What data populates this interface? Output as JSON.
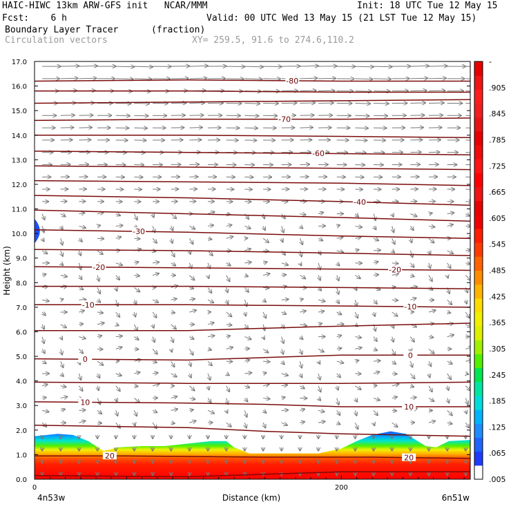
{
  "header": {
    "line1_left": "HAIC-HIWC 13km ARW-GFS init   NCAR/MMM",
    "line1_right": "Init: 18 UTC Tue 12 May 15",
    "line2_left": "Fcst:    6 h",
    "line2_right": "Valid: 00 UTC Wed 13 May 15 (21 LST Tue 12 May 15)",
    "line3_left": "Boundary Layer Tracer",
    "line3_mid": "(fraction)",
    "line4_left": "Circulation vectors",
    "line4_mid": "XY= 259.5, 91.6 to 274.6,110.2"
  },
  "chart_data": {
    "type": "heatmap",
    "title": "Boundary Layer Tracer",
    "units": "(fraction)",
    "xlabel": "Distance (km)",
    "ylabel": "Height (km)",
    "x_range": [
      0,
      284
    ],
    "y_range": [
      0,
      17
    ],
    "x_ticks": [
      {
        "v": 0,
        "label": "0"
      },
      {
        "v": 200,
        "label": "200"
      }
    ],
    "x_end_labels": {
      "left": "4n53w",
      "right": "6n51w"
    },
    "y_ticks": [
      0,
      1,
      2,
      3,
      4,
      5,
      6,
      7,
      8,
      9,
      10,
      11,
      12,
      13,
      14,
      15,
      16,
      17
    ],
    "y_tick_labels": [
      "0.0",
      "1.0",
      "2.0",
      "3.0",
      "4.0",
      "5.0",
      "6.0",
      "7.0",
      "8.0",
      "9.0",
      "10.0",
      "11.0",
      "12.0",
      "13.0",
      "14.0",
      "15.0",
      "16.0",
      "17.0"
    ],
    "colorbar": {
      "labels": [
        ".005",
        ".065",
        ".125",
        ".185",
        ".245",
        ".305",
        ".365",
        ".425",
        ".485",
        ".545",
        ".605",
        ".665",
        ".725",
        ".785",
        ".845",
        ".905",
        "-"
      ],
      "colors": [
        "#ffffff",
        "#1e3cff",
        "#1e64ff",
        "#1e8cff",
        "#00b4ff",
        "#00dcdc",
        "#00e6a0",
        "#00e650",
        "#50f000",
        "#a0f000",
        "#dcf000",
        "#f0f000",
        "#ffdc00",
        "#ffb400",
        "#ff8c00",
        "#ff6400",
        "#ff3c00",
        "#ff1e00",
        "#f00000",
        "#e60000",
        "#f01414",
        "#ff0000",
        "#ff1414",
        "#f00a0a",
        "#e60000",
        "#e61414",
        "#f01e1e",
        "#ff1e1e",
        "#f01414",
        "#e60000"
      ]
    },
    "tracer_top_km": [
      [
        0,
        1.75
      ],
      [
        15,
        1.85
      ],
      [
        25,
        1.8
      ],
      [
        35,
        1.55
      ],
      [
        45,
        1.15
      ],
      [
        55,
        1.3
      ],
      [
        70,
        1.35
      ],
      [
        85,
        1.35
      ],
      [
        100,
        1.45
      ],
      [
        115,
        1.55
      ],
      [
        125,
        1.55
      ],
      [
        130,
        1.3
      ],
      [
        140,
        1.05
      ],
      [
        160,
        1.05
      ],
      [
        185,
        1.05
      ],
      [
        200,
        1.25
      ],
      [
        210,
        1.55
      ],
      [
        220,
        1.8
      ],
      [
        232,
        1.95
      ],
      [
        242,
        1.85
      ],
      [
        255,
        1.35
      ],
      [
        262,
        1.3
      ],
      [
        270,
        1.55
      ],
      [
        284,
        1.6
      ]
    ],
    "tracer_left_blob": {
      "x_km": [
        0,
        7
      ],
      "y_km": [
        9.6,
        10.6
      ]
    },
    "temperature_contours": [
      {
        "label": "-80",
        "label_x": 168,
        "pts": [
          [
            0,
            16.2
          ],
          [
            100,
            16.25
          ],
          [
            200,
            16.2
          ],
          [
            284,
            16.2
          ]
        ]
      },
      {
        "label": "",
        "label_x": null,
        "pts": [
          [
            0,
            15.8
          ],
          [
            100,
            15.8
          ],
          [
            200,
            15.75
          ],
          [
            284,
            15.75
          ]
        ]
      },
      {
        "label": "",
        "label_x": null,
        "pts": [
          [
            0,
            15.3
          ],
          [
            100,
            15.35
          ],
          [
            200,
            15.4
          ],
          [
            284,
            15.45
          ]
        ]
      },
      {
        "label": "-70",
        "label_x": 163,
        "pts": [
          [
            0,
            14.6
          ],
          [
            100,
            14.65
          ],
          [
            200,
            14.65
          ],
          [
            284,
            14.7
          ]
        ]
      },
      {
        "label": "",
        "label_x": null,
        "pts": [
          [
            0,
            14.0
          ],
          [
            100,
            14.0
          ],
          [
            200,
            13.95
          ],
          [
            284,
            13.9
          ]
        ]
      },
      {
        "label": "-60",
        "label_x": 185,
        "pts": [
          [
            0,
            13.35
          ],
          [
            100,
            13.3
          ],
          [
            200,
            13.25
          ],
          [
            284,
            13.2
          ]
        ]
      },
      {
        "label": "",
        "label_x": null,
        "pts": [
          [
            0,
            12.75
          ],
          [
            100,
            12.7
          ],
          [
            200,
            12.65
          ],
          [
            284,
            12.6
          ]
        ]
      },
      {
        "label": "",
        "label_x": null,
        "pts": [
          [
            0,
            12.15
          ],
          [
            100,
            12.1
          ],
          [
            200,
            12.05
          ],
          [
            284,
            11.95
          ]
        ]
      },
      {
        "label": "-40",
        "label_x": 212,
        "pts": [
          [
            0,
            11.55
          ],
          [
            100,
            11.45
          ],
          [
            200,
            11.3
          ],
          [
            284,
            11.15
          ]
        ]
      },
      {
        "label": "",
        "label_x": null,
        "pts": [
          [
            0,
            10.95
          ],
          [
            100,
            10.8
          ],
          [
            200,
            10.65
          ],
          [
            284,
            10.5
          ]
        ]
      },
      {
        "label": "-30",
        "label_x": 68,
        "pts": [
          [
            0,
            10.15
          ],
          [
            100,
            10.05
          ],
          [
            200,
            9.9
          ],
          [
            284,
            9.8
          ]
        ]
      },
      {
        "label": "",
        "label_x": null,
        "pts": [
          [
            0,
            9.35
          ],
          [
            100,
            9.3
          ],
          [
            200,
            9.2
          ],
          [
            284,
            9.1
          ]
        ]
      },
      {
        "label": "-20",
        "label_x": 42,
        "label_x2": 235,
        "pts": [
          [
            0,
            8.65
          ],
          [
            100,
            8.6
          ],
          [
            200,
            8.55
          ],
          [
            284,
            8.5
          ]
        ]
      },
      {
        "label": "",
        "label_x": null,
        "pts": [
          [
            0,
            7.85
          ],
          [
            100,
            7.85
          ],
          [
            200,
            7.8
          ],
          [
            284,
            7.75
          ]
        ]
      },
      {
        "label": "-10",
        "label_x": 35,
        "label_x2": 245,
        "pts": [
          [
            0,
            7.1
          ],
          [
            100,
            7.1
          ],
          [
            200,
            7.05
          ],
          [
            284,
            7.0
          ]
        ]
      },
      {
        "label": "",
        "label_x": null,
        "pts": [
          [
            0,
            6.05
          ],
          [
            100,
            6.05
          ],
          [
            180,
            6.2
          ],
          [
            284,
            6.35
          ]
        ]
      },
      {
        "label": "0",
        "label_x": 33,
        "label_x2": 245,
        "pts": [
          [
            0,
            4.9
          ],
          [
            100,
            4.85
          ],
          [
            150,
            4.95
          ],
          [
            200,
            5.05
          ],
          [
            284,
            5.05
          ]
        ]
      },
      {
        "label": "",
        "label_x": null,
        "pts": [
          [
            0,
            3.95
          ],
          [
            100,
            3.9
          ],
          [
            200,
            3.9
          ],
          [
            284,
            3.95
          ]
        ]
      },
      {
        "label": "10",
        "label_x": 33,
        "label_x2": 244,
        "pts": [
          [
            0,
            3.15
          ],
          [
            100,
            3.1
          ],
          [
            150,
            3.05
          ],
          [
            200,
            2.95
          ],
          [
            284,
            2.95
          ]
        ]
      },
      {
        "label": "",
        "label_x": null,
        "pts": [
          [
            0,
            2.2
          ],
          [
            100,
            2.1
          ],
          [
            150,
            1.95
          ],
          [
            200,
            1.85
          ],
          [
            284,
            1.75
          ]
        ]
      },
      {
        "label": "20",
        "label_x": 49,
        "label_x2": 244,
        "pts": [
          [
            0,
            0.95
          ],
          [
            60,
            0.95
          ],
          [
            150,
            0.9
          ],
          [
            220,
            0.9
          ],
          [
            284,
            0.85
          ]
        ]
      },
      {
        "label": "",
        "label_x": null,
        "pts": [
          [
            0,
            0.15
          ],
          [
            100,
            0.1
          ],
          [
            200,
            0.3
          ],
          [
            284,
            0.3
          ]
        ]
      }
    ]
  }
}
